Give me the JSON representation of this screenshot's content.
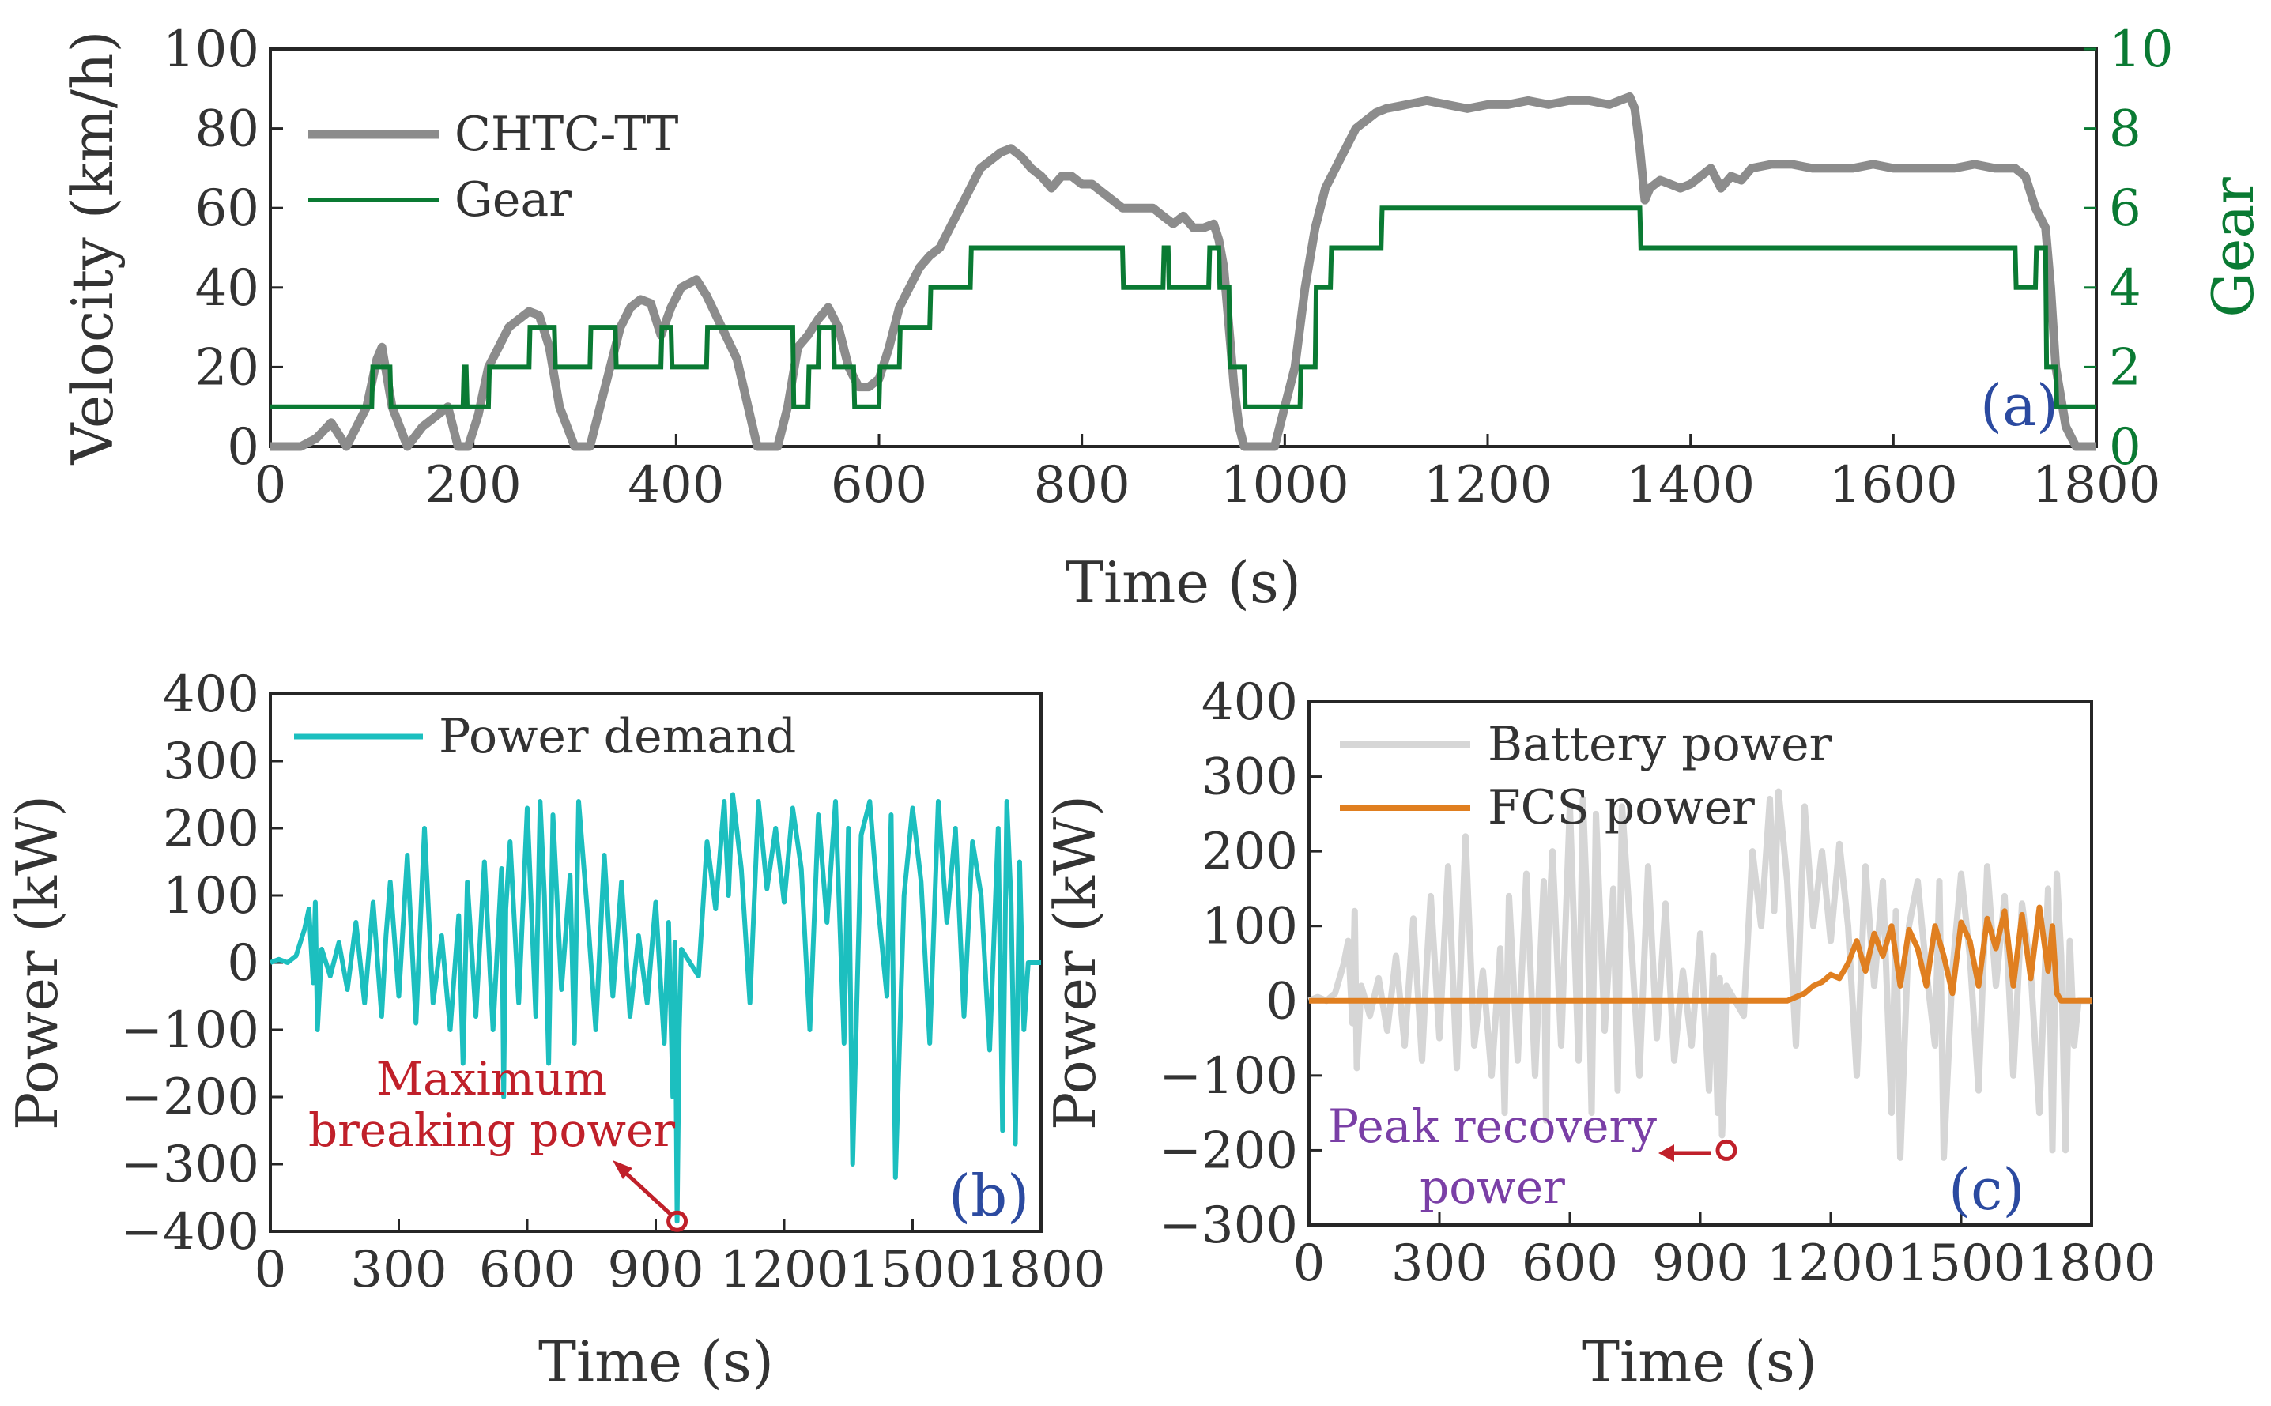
{
  "chart_data": [
    {
      "id": "a",
      "type": "line",
      "panel_label": "(a)",
      "xlabel": "Time (s)",
      "ylabel": "Velocity (km/h)",
      "ylabel_right": "Gear",
      "xlim": [
        0,
        1800
      ],
      "ylim": [
        0,
        100
      ],
      "ylim_right": [
        0,
        10
      ],
      "xticks": [
        0,
        200,
        400,
        600,
        800,
        1000,
        1200,
        1400,
        1600,
        1800
      ],
      "yticks": [
        0,
        20,
        40,
        60,
        80,
        100
      ],
      "yticks_right": [
        0,
        2,
        4,
        6,
        8,
        10
      ],
      "legend_position": "top-left",
      "colors": {
        "velocity": "#8c8c8c",
        "gear": "#0a7a33",
        "right_axis": "#0a7a33",
        "panel_label": "#2b4aa0"
      },
      "series": [
        {
          "name": "CHTC-TT",
          "axis": "left",
          "x": [
            0,
            30,
            45,
            60,
            75,
            85,
            95,
            105,
            110,
            120,
            135,
            150,
            165,
            175,
            185,
            195,
            205,
            215,
            225,
            235,
            245,
            255,
            265,
            275,
            285,
            300,
            315,
            330,
            345,
            355,
            365,
            375,
            385,
            395,
            405,
            420,
            430,
            445,
            460,
            480,
            490,
            500,
            510,
            520,
            530,
            540,
            550,
            560,
            570,
            580,
            590,
            600,
            610,
            620,
            630,
            640,
            650,
            660,
            670,
            680,
            690,
            700,
            710,
            720,
            730,
            740,
            750,
            760,
            770,
            780,
            790,
            800,
            810,
            820,
            830,
            840,
            850,
            860,
            870,
            880,
            890,
            900,
            910,
            920,
            930,
            935,
            940,
            945,
            950,
            955,
            960,
            970,
            980,
            990,
            1000,
            1010,
            1020,
            1030,
            1040,
            1050,
            1060,
            1070,
            1080,
            1090,
            1100,
            1120,
            1140,
            1160,
            1180,
            1200,
            1220,
            1240,
            1260,
            1280,
            1300,
            1320,
            1340,
            1345,
            1350,
            1355,
            1360,
            1370,
            1380,
            1390,
            1400,
            1410,
            1420,
            1430,
            1440,
            1450,
            1460,
            1480,
            1500,
            1520,
            1540,
            1560,
            1580,
            1600,
            1620,
            1640,
            1660,
            1680,
            1700,
            1720,
            1730,
            1740,
            1750,
            1755,
            1760,
            1770,
            1780,
            1800
          ],
          "values": [
            0,
            0,
            2,
            6,
            0,
            5,
            10,
            22,
            25,
            10,
            0,
            5,
            8,
            10,
            0,
            0,
            8,
            20,
            25,
            30,
            32,
            34,
            33,
            25,
            10,
            0,
            0,
            15,
            30,
            35,
            37,
            36,
            28,
            35,
            40,
            42,
            38,
            30,
            22,
            0,
            0,
            0,
            10,
            25,
            28,
            32,
            35,
            30,
            20,
            15,
            15,
            17,
            25,
            35,
            40,
            45,
            48,
            50,
            55,
            60,
            65,
            70,
            72,
            74,
            75,
            73,
            70,
            68,
            65,
            68,
            68,
            66,
            66,
            64,
            62,
            60,
            60,
            60,
            60,
            58,
            56,
            58,
            55,
            55,
            56,
            52,
            45,
            30,
            15,
            5,
            0,
            0,
            0,
            0,
            10,
            20,
            40,
            55,
            65,
            70,
            75,
            80,
            82,
            84,
            85,
            86,
            87,
            86,
            85,
            86,
            86,
            87,
            86,
            87,
            87,
            86,
            88,
            85,
            75,
            62,
            65,
            67,
            66,
            65,
            66,
            68,
            70,
            65,
            68,
            67,
            70,
            71,
            71,
            70,
            70,
            70,
            71,
            70,
            70,
            70,
            70,
            71,
            70,
            70,
            68,
            60,
            55,
            40,
            20,
            5,
            0,
            0
          ]
        },
        {
          "name": "Gear",
          "axis": "right",
          "x": [
            0,
            100,
            101,
            118,
            119,
            190,
            191,
            193,
            194,
            215,
            216,
            255,
            256,
            280,
            281,
            315,
            316,
            340,
            341,
            385,
            386,
            395,
            396,
            430,
            431,
            515,
            516,
            530,
            531,
            540,
            541,
            555,
            556,
            575,
            576,
            600,
            601,
            620,
            621,
            650,
            651,
            690,
            691,
            840,
            841,
            880,
            881,
            885,
            886,
            925,
            926,
            935,
            936,
            945,
            946,
            960,
            961,
            1015,
            1016,
            1030,
            1031,
            1045,
            1046,
            1095,
            1096,
            1350,
            1351,
            1720,
            1721,
            1740,
            1741,
            1750,
            1751,
            1760,
            1761,
            1800
          ],
          "values": [
            1,
            1,
            2,
            2,
            1,
            1,
            2,
            2,
            1,
            1,
            2,
            2,
            3,
            3,
            2,
            2,
            3,
            3,
            2,
            2,
            3,
            3,
            2,
            2,
            3,
            3,
            1,
            1,
            2,
            2,
            3,
            3,
            2,
            2,
            1,
            1,
            2,
            2,
            3,
            3,
            4,
            4,
            5,
            5,
            4,
            4,
            5,
            5,
            4,
            4,
            5,
            5,
            4,
            4,
            2,
            2,
            1,
            1,
            2,
            2,
            4,
            4,
            5,
            5,
            6,
            6,
            5,
            5,
            4,
            4,
            5,
            5,
            2,
            2,
            1,
            1
          ]
        }
      ]
    },
    {
      "id": "b",
      "type": "line",
      "panel_label": "(b)",
      "xlabel": "Time (s)",
      "ylabel": "Power (kW)",
      "xlim": [
        0,
        1800
      ],
      "ylim": [
        -400,
        400
      ],
      "xticks": [
        0,
        300,
        600,
        900,
        1200,
        1500,
        1800
      ],
      "yticks": [
        -400,
        -300,
        -200,
        -100,
        0,
        100,
        200,
        300,
        400
      ],
      "legend_position": "top-left",
      "annotation": {
        "text_line1": "Maximum",
        "text_line2": "breaking power",
        "x": 950,
        "y": -385
      },
      "colors": {
        "power": "#1cbfbf",
        "annotation": "#c0202a",
        "panel_label": "#2b4aa0"
      },
      "series": [
        {
          "name": "Power demand",
          "x": [
            0,
            20,
            40,
            60,
            80,
            90,
            100,
            105,
            110,
            120,
            140,
            160,
            180,
            200,
            220,
            240,
            260,
            270,
            280,
            300,
            320,
            340,
            360,
            380,
            400,
            420,
            440,
            450,
            460,
            480,
            500,
            520,
            540,
            545,
            550,
            560,
            580,
            600,
            620,
            630,
            640,
            650,
            660,
            680,
            700,
            710,
            720,
            740,
            760,
            780,
            800,
            820,
            840,
            860,
            880,
            900,
            920,
            930,
            940,
            945,
            950,
            955,
            960,
            980,
            1000,
            1020,
            1040,
            1060,
            1070,
            1080,
            1100,
            1120,
            1140,
            1160,
            1180,
            1200,
            1220,
            1240,
            1260,
            1280,
            1300,
            1320,
            1340,
            1350,
            1360,
            1380,
            1400,
            1420,
            1440,
            1450,
            1460,
            1480,
            1500,
            1520,
            1540,
            1560,
            1580,
            1600,
            1620,
            1640,
            1660,
            1680,
            1700,
            1710,
            1720,
            1730,
            1740,
            1750,
            1760,
            1770,
            1780,
            1800
          ],
          "values": [
            0,
            5,
            0,
            10,
            50,
            80,
            -30,
            90,
            -100,
            20,
            -20,
            30,
            -40,
            60,
            -60,
            90,
            -80,
            40,
            120,
            -50,
            160,
            -90,
            200,
            -60,
            40,
            -100,
            70,
            -150,
            120,
            -80,
            150,
            -100,
            140,
            -200,
            80,
            180,
            -60,
            230,
            -80,
            240,
            100,
            -150,
            220,
            -40,
            130,
            -120,
            240,
            80,
            -100,
            160,
            -50,
            120,
            -80,
            40,
            -60,
            90,
            -120,
            60,
            -200,
            30,
            -385,
            -100,
            20,
            0,
            -20,
            180,
            80,
            240,
            100,
            250,
            140,
            -60,
            240,
            110,
            200,
            90,
            230,
            140,
            -100,
            220,
            60,
            240,
            -120,
            200,
            -300,
            190,
            240,
            80,
            -50,
            220,
            -320,
            100,
            230,
            120,
            -120,
            240,
            60,
            200,
            -80,
            180,
            100,
            -130,
            200,
            -250,
            240,
            90,
            -270,
            150,
            -100,
            0,
            0,
            0
          ]
        }
      ]
    },
    {
      "id": "c",
      "type": "line",
      "panel_label": "(c)",
      "xlabel": "Time (s)",
      "ylabel": "Power (kW)",
      "xlim": [
        0,
        1800
      ],
      "ylim": [
        -300,
        400
      ],
      "xticks": [
        0,
        300,
        600,
        900,
        1200,
        1500,
        1800
      ],
      "yticks": [
        -300,
        -200,
        -100,
        0,
        100,
        200,
        300,
        400
      ],
      "legend_position": "top-left",
      "annotation": {
        "text_line1": "Peak recovery",
        "text_line2": "power",
        "x": 960,
        "y": -200
      },
      "colors": {
        "battery": "#d6d6d6",
        "fcs": "#e07f20",
        "annotation_text": "#7a3fa6",
        "annotation_marker": "#c0202a",
        "panel_label": "#2b4aa0"
      },
      "series": [
        {
          "name": "Battery power",
          "x": [
            0,
            20,
            40,
            60,
            80,
            90,
            100,
            105,
            110,
            120,
            140,
            160,
            180,
            200,
            220,
            240,
            260,
            270,
            280,
            300,
            320,
            340,
            360,
            380,
            400,
            420,
            440,
            450,
            460,
            480,
            500,
            520,
            540,
            545,
            550,
            560,
            580,
            600,
            620,
            630,
            640,
            650,
            660,
            680,
            700,
            710,
            720,
            740,
            760,
            780,
            800,
            820,
            840,
            860,
            880,
            900,
            920,
            930,
            940,
            945,
            950,
            955,
            960,
            980,
            1000,
            1020,
            1040,
            1060,
            1070,
            1080,
            1100,
            1120,
            1140,
            1160,
            1180,
            1200,
            1220,
            1240,
            1260,
            1280,
            1300,
            1320,
            1340,
            1350,
            1360,
            1380,
            1400,
            1420,
            1440,
            1450,
            1460,
            1480,
            1500,
            1520,
            1540,
            1560,
            1580,
            1600,
            1620,
            1640,
            1660,
            1680,
            1700,
            1710,
            1720,
            1730,
            1740,
            1750,
            1760,
            1770,
            1780,
            1800
          ],
          "values": [
            0,
            5,
            0,
            10,
            50,
            80,
            -30,
            120,
            -90,
            20,
            -20,
            30,
            -40,
            60,
            -60,
            110,
            -80,
            40,
            140,
            -50,
            180,
            -90,
            220,
            -60,
            40,
            -100,
            70,
            -150,
            140,
            -80,
            170,
            -100,
            160,
            -160,
            80,
            200,
            -60,
            260,
            -80,
            270,
            120,
            -150,
            250,
            -40,
            150,
            -120,
            260,
            90,
            -100,
            180,
            -50,
            130,
            -80,
            40,
            -60,
            90,
            -120,
            60,
            -150,
            30,
            -180,
            -100,
            20,
            0,
            -20,
            200,
            100,
            270,
            120,
            280,
            160,
            -60,
            260,
            100,
            200,
            80,
            210,
            100,
            -100,
            180,
            20,
            160,
            -150,
            120,
            -210,
            100,
            160,
            40,
            -60,
            160,
            -210,
            40,
            170,
            60,
            -120,
            180,
            20,
            140,
            -100,
            130,
            40,
            -150,
            150,
            -200,
            170,
            60,
            -200,
            80,
            -60,
            0,
            0,
            0
          ]
        },
        {
          "name": "FCS power",
          "x": [
            0,
            1100,
            1120,
            1140,
            1160,
            1180,
            1200,
            1220,
            1240,
            1260,
            1280,
            1300,
            1320,
            1340,
            1360,
            1380,
            1400,
            1420,
            1440,
            1460,
            1480,
            1500,
            1520,
            1540,
            1560,
            1580,
            1600,
            1620,
            1640,
            1660,
            1680,
            1700,
            1710,
            1720,
            1730,
            1740,
            1750,
            1800
          ],
          "values": [
            0,
            0,
            5,
            10,
            20,
            25,
            35,
            30,
            50,
            80,
            40,
            90,
            60,
            100,
            20,
            95,
            70,
            20,
            100,
            60,
            10,
            105,
            80,
            20,
            110,
            70,
            120,
            20,
            115,
            30,
            125,
            40,
            100,
            10,
            0,
            0,
            0,
            0
          ]
        }
      ]
    }
  ]
}
